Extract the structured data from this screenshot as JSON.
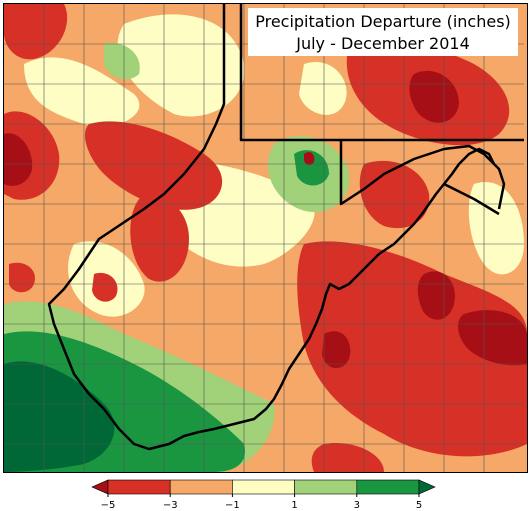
{
  "title": {
    "line1": "Precipitation Departure (inches)",
    "line2": "July - December 2014"
  },
  "legend": {
    "unit": "inches",
    "ticks": [
      "−5",
      "−3",
      "−1",
      "1",
      "3",
      "5"
    ],
    "bins": [
      {
        "range": "< -5",
        "color": "#a50f15"
      },
      {
        "range": "-5 to -3",
        "color": "#d73027"
      },
      {
        "range": "-3 to -1",
        "color": "#f5a867"
      },
      {
        "range": "-1 to 1",
        "color": "#fdfdc4"
      },
      {
        "range": "1 to 3",
        "color": "#a1d27a"
      },
      {
        "range": "3 to 5",
        "color": "#1a9641"
      },
      {
        "range": "> 5",
        "color": "#006837"
      }
    ]
  },
  "map": {
    "variable": "precipitation departure",
    "region": "West Virginia and surrounding states",
    "boundary_color": "#000000"
  }
}
